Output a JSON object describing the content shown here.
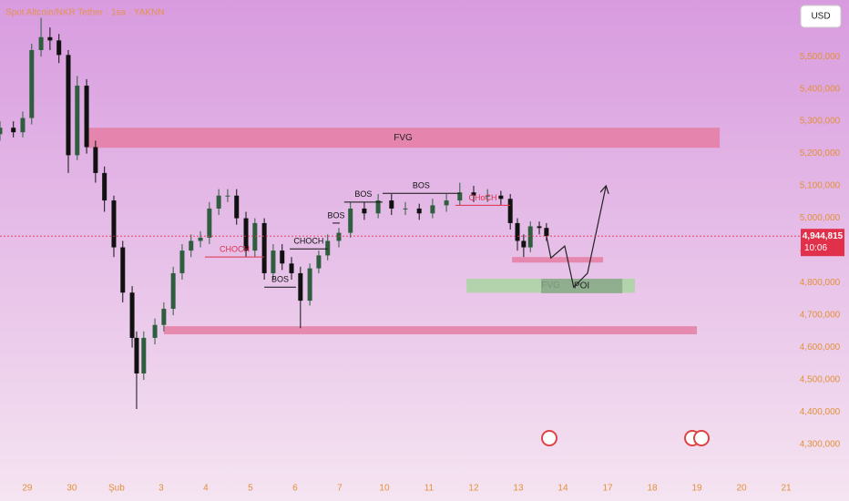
{
  "chart_data": {
    "type": "candlestick",
    "title": "Spot Altcoin/NKR Tether · 1sa · YAKNN",
    "currency": "USD",
    "xlim": [
      -0.61,
      17.04
    ],
    "ylim": [
      4210000,
      5675000
    ],
    "xticks": [
      {
        "value": 0,
        "label": "29"
      },
      {
        "value": 1,
        "label": "30"
      },
      {
        "value": 2,
        "label": "Şub"
      },
      {
        "value": 3,
        "label": "3"
      },
      {
        "value": 4,
        "label": "4"
      },
      {
        "value": 5,
        "label": "5"
      },
      {
        "value": 6,
        "label": "6"
      },
      {
        "value": 7,
        "label": "7"
      },
      {
        "value": 8,
        "label": "10"
      },
      {
        "value": 9,
        "label": "11"
      },
      {
        "value": 10,
        "label": "12"
      },
      {
        "value": 11,
        "label": "13"
      },
      {
        "value": 12,
        "label": "14"
      },
      {
        "value": 13,
        "label": "17"
      },
      {
        "value": 14,
        "label": "18"
      },
      {
        "value": 15,
        "label": "19"
      },
      {
        "value": 16,
        "label": "20"
      },
      {
        "value": 17,
        "label": "21"
      }
    ],
    "yticks": [
      {
        "value": 5500000,
        "label": "5,500,000"
      },
      {
        "value": 5400000,
        "label": "5,400,000"
      },
      {
        "value": 5300000,
        "label": "5,300,000"
      },
      {
        "value": 5200000,
        "label": "5,200,000"
      },
      {
        "value": 5100000,
        "label": "5,100,000"
      },
      {
        "value": 5000000,
        "label": "5,000,000"
      },
      {
        "value": 4900000,
        "label": "4,900,000"
      },
      {
        "value": 4800000,
        "label": "4,800,000"
      },
      {
        "value": 4700000,
        "label": "4,700,000"
      },
      {
        "value": 4600000,
        "label": "4,600,000"
      },
      {
        "value": 4500000,
        "label": "4,500,000"
      },
      {
        "value": 4400000,
        "label": "4,400,000"
      },
      {
        "value": 4300000,
        "label": "4,300,000"
      }
    ],
    "up_color": "#2e5e3e",
    "down_color": "#111111",
    "x": [
      -0.61,
      -0.31,
      -0.1,
      0.1,
      0.31,
      0.51,
      0.71,
      0.92,
      1.12,
      1.33,
      1.53,
      1.73,
      1.94,
      2.14,
      2.35,
      2.45,
      2.61,
      2.86,
      3.06,
      3.27,
      3.47,
      3.67,
      3.88,
      4.08,
      4.29,
      4.49,
      4.69,
      4.9,
      5.1,
      5.31,
      5.51,
      5.71,
      5.92,
      6.12,
      6.33,
      6.53,
      6.73,
      6.98,
      7.24,
      7.55,
      7.86,
      8.16,
      8.47,
      8.78,
      9.08,
      9.39,
      9.69,
      10.0,
      10.31,
      10.61,
      10.82,
      10.98,
      11.12,
      11.27,
      11.47,
      11.63
    ],
    "open": [
      5260000,
      5280000,
      5266000,
      5310000,
      5520000,
      5560000,
      5550000,
      5505000,
      5195000,
      5410000,
      5220000,
      5140000,
      5055000,
      4910000,
      4770000,
      4630000,
      4520000,
      4630000,
      4670000,
      4720000,
      4830000,
      4900000,
      4930000,
      4940000,
      5030000,
      5070000,
      5070000,
      5000000,
      4900000,
      4985000,
      4830000,
      4900000,
      4860000,
      4830000,
      4745000,
      4845000,
      4885000,
      4930000,
      4955000,
      5030000,
      5015000,
      5055000,
      5030000,
      5030000,
      5015000,
      5040000,
      5055000,
      5080000,
      5070000,
      5070000,
      5060000,
      4985000,
      4930000,
      4910000,
      4975000,
      4970000
    ],
    "high": [
      5300000,
      5300000,
      5330000,
      5540000,
      5620000,
      5590000,
      5570000,
      5520000,
      5440000,
      5430000,
      5240000,
      5160000,
      5070000,
      4930000,
      4790000,
      4650000,
      4650000,
      4690000,
      4740000,
      4850000,
      4920000,
      4950000,
      4960000,
      5050000,
      5090000,
      5090000,
      5090000,
      5020000,
      5000000,
      5000000,
      4920000,
      4920000,
      4880000,
      4850000,
      4860000,
      4900000,
      4950000,
      4970000,
      5050000,
      5050000,
      5075000,
      5075000,
      5050000,
      5045000,
      5060000,
      5075000,
      5110000,
      5100000,
      5090000,
      5085000,
      5075000,
      5000000,
      4950000,
      4990000,
      4990000,
      4985000
    ],
    "low": [
      5240000,
      5250000,
      5250000,
      5290000,
      5500000,
      5520000,
      5480000,
      5140000,
      5180000,
      5200000,
      5110000,
      5020000,
      4880000,
      4740000,
      4600000,
      4410000,
      4500000,
      4610000,
      4650000,
      4700000,
      4810000,
      4880000,
      4910000,
      4920000,
      5010000,
      5050000,
      4980000,
      4880000,
      4880000,
      4810000,
      4810000,
      4840000,
      4810000,
      4660000,
      4730000,
      4830000,
      4870000,
      4910000,
      4940000,
      4995000,
      5000000,
      5010000,
      5010000,
      4995000,
      5000000,
      5020000,
      5040000,
      5050000,
      5050000,
      5040000,
      4965000,
      4900000,
      4880000,
      4895000,
      4950000,
      4930000
    ],
    "close": [
      5280000,
      5266000,
      5310000,
      5520000,
      5560000,
      5550000,
      5505000,
      5195000,
      5410000,
      5220000,
      5140000,
      5055000,
      4910000,
      4770000,
      4630000,
      4520000,
      4630000,
      4670000,
      4720000,
      4830000,
      4900000,
      4930000,
      4940000,
      5030000,
      5070000,
      5070000,
      5000000,
      4900000,
      4985000,
      4830000,
      4900000,
      4860000,
      4830000,
      4745000,
      4845000,
      4885000,
      4930000,
      4955000,
      5030000,
      5015000,
      5055000,
      5030000,
      5030000,
      5015000,
      5040000,
      5055000,
      5080000,
      5070000,
      5070000,
      5060000,
      4985000,
      4930000,
      4910000,
      4975000,
      4970000,
      4945000
    ],
    "zones": [
      {
        "label": "FVG",
        "color": "#e57ea3",
        "x": [
          1.33,
          15.51
        ],
        "y": [
          5218000,
          5280000
        ]
      },
      {
        "color": "#e57ea3",
        "x": [
          3.06,
          15.0
        ],
        "y": [
          4641000,
          4666000
        ]
      },
      {
        "color": "#e57ea3",
        "x": [
          10.86,
          12.9
        ],
        "y": [
          4863000,
          4880000
        ]
      },
      {
        "label": "FVG",
        "color": "#a8d5a0",
        "x": [
          9.84,
          13.61
        ],
        "y": [
          4770000,
          4813000
        ]
      },
      {
        "label": "POI",
        "color": "#8aa88a",
        "x": [
          11.51,
          13.33
        ],
        "y": [
          4768000,
          4813000
        ]
      }
    ],
    "levels": [
      {
        "label": "CHOCH",
        "color": "#e0304a",
        "x": [
          3.98,
          5.31
        ],
        "y": 4880000
      },
      {
        "label": "BOS",
        "color": "#111111",
        "x": [
          5.31,
          6.02
        ],
        "y": 4787000
      },
      {
        "label": "CHOCH",
        "color": "#111111",
        "x": [
          5.88,
          6.73
        ],
        "y": 4905000
      },
      {
        "label": "BOS",
        "color": "#111111",
        "x": [
          6.84,
          7.0
        ],
        "y": 4985000
      },
      {
        "label": "BOS",
        "color": "#111111",
        "x": [
          7.1,
          7.96
        ],
        "y": 5050000
      },
      {
        "label": "BOS",
        "color": "#111111",
        "x": [
          7.96,
          9.69
        ],
        "y": 5077000
      },
      {
        "label": "CHoCH",
        "color": "#e0304a",
        "x": [
          9.59,
          10.82
        ],
        "y": 5040000
      }
    ],
    "projection": {
      "x": [
        11.63,
        11.73,
        12.04,
        12.24,
        12.55,
        12.96
      ],
      "y": [
        4945000,
        4877000,
        4914000,
        4787000,
        4830000,
        5097000
      ]
    },
    "last_price": {
      "value": 4944815,
      "label": "4,944,815"
    },
    "countdown": "10:06"
  }
}
